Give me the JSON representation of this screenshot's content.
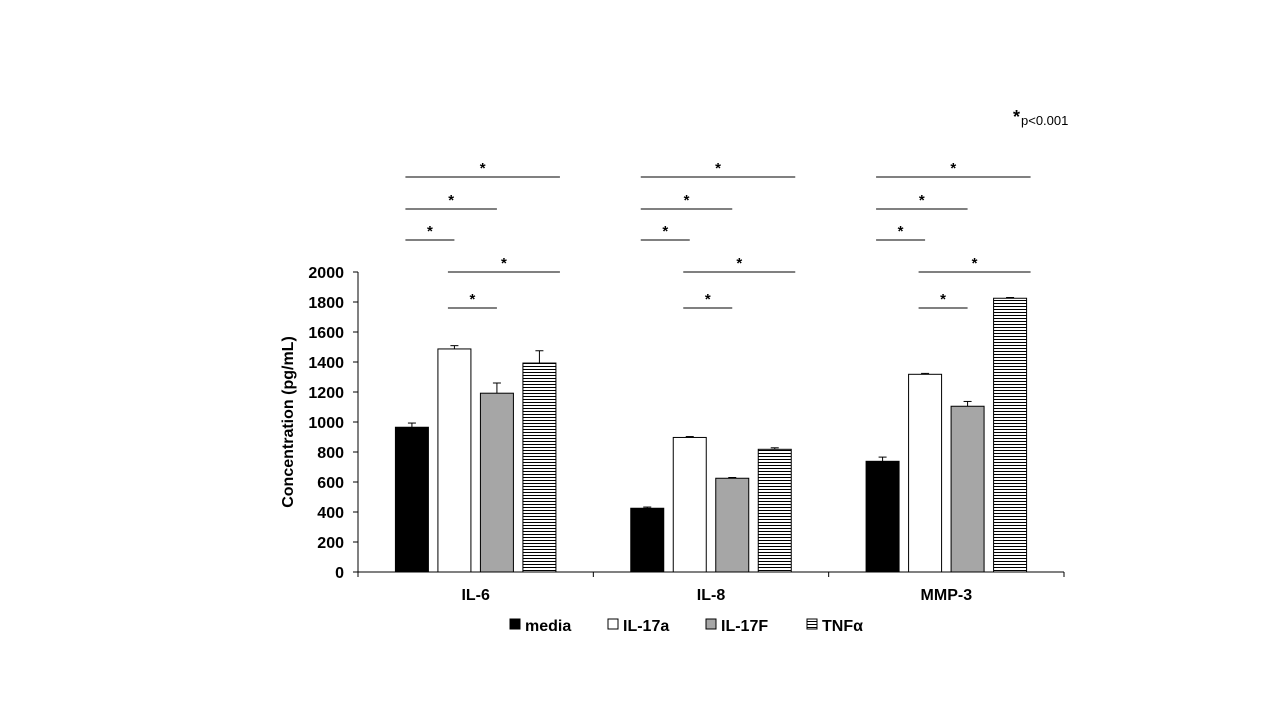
{
  "chart_data": {
    "type": "bar",
    "categories": [
      "IL-6",
      "IL-8",
      "MMP-3"
    ],
    "series": [
      {
        "name": "media",
        "values": [
          965,
          425,
          738
        ],
        "errors": [
          28,
          8,
          28
        ],
        "color": "#000000",
        "pattern": "solid"
      },
      {
        "name": "IL-17a",
        "values": [
          1487,
          897,
          1318
        ],
        "errors": [
          22,
          6,
          6
        ],
        "color": "#ffffff",
        "pattern": "solid"
      },
      {
        "name": "IL-17F",
        "values": [
          1192,
          625,
          1105
        ],
        "errors": [
          68,
          5,
          32
        ],
        "color": "#a6a6a6",
        "pattern": "solid"
      },
      {
        "name": "TNFα",
        "values": [
          1393,
          818,
          1825
        ],
        "errors": [
          82,
          10,
          5
        ],
        "color": "#ffffff",
        "pattern": "horizontal-lines"
      }
    ],
    "ylabel": "Concentration (pg/mL)",
    "ylim": [
      0,
      2000
    ],
    "yticks": [
      "0",
      "200",
      "400",
      "600",
      "800",
      "1000",
      "1200",
      "1400",
      "1600",
      "1800",
      "2000"
    ],
    "legend_position": "bottom",
    "significance": {
      "marker": "*",
      "note_text": "p<0.001",
      "comparisons": [
        {
          "category": 0,
          "from": 0,
          "to": 1,
          "label": "*"
        },
        {
          "category": 0,
          "from": 0,
          "to": 2,
          "label": "*"
        },
        {
          "category": 0,
          "from": 0,
          "to": 3,
          "label": "*"
        },
        {
          "category": 0,
          "from": 1,
          "to": 2,
          "label": "*"
        },
        {
          "category": 0,
          "from": 1,
          "to": 3,
          "label": "*"
        },
        {
          "category": 1,
          "from": 0,
          "to": 1,
          "label": "*"
        },
        {
          "category": 1,
          "from": 0,
          "to": 2,
          "label": "*"
        },
        {
          "category": 1,
          "from": 0,
          "to": 3,
          "label": "*"
        },
        {
          "category": 1,
          "from": 1,
          "to": 2,
          "label": "*"
        },
        {
          "category": 1,
          "from": 1,
          "to": 3,
          "label": "*"
        },
        {
          "category": 2,
          "from": 0,
          "to": 1,
          "label": "*"
        },
        {
          "category": 2,
          "from": 0,
          "to": 2,
          "label": "*"
        },
        {
          "category": 2,
          "from": 0,
          "to": 3,
          "label": "*"
        },
        {
          "category": 2,
          "from": 1,
          "to": 2,
          "label": "*"
        },
        {
          "category": 2,
          "from": 1,
          "to": 3,
          "label": "*"
        }
      ]
    }
  }
}
